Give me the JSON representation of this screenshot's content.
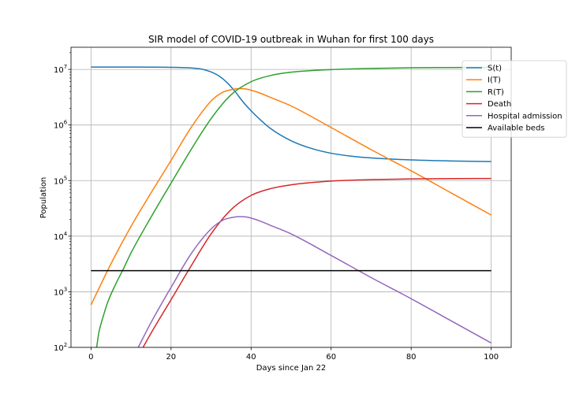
{
  "chart_data": {
    "type": "line",
    "title": "SIR model of COVID-19 outbreak in Wuhan for first 100 days",
    "xlabel": "Days since Jan 22",
    "ylabel": "Population",
    "yscale": "log",
    "xlim": [
      -5,
      105
    ],
    "ylim": [
      100,
      25000000
    ],
    "xticks": [
      0,
      20,
      40,
      60,
      80,
      100
    ],
    "xtick_labels": [
      "0",
      "20",
      "40",
      "60",
      "80",
      "100"
    ],
    "yticks": [
      100,
      1000,
      10000,
      100000,
      1000000,
      10000000
    ],
    "ytick_labels": [
      {
        "base": "10",
        "exp": "2"
      },
      {
        "base": "10",
        "exp": "3"
      },
      {
        "base": "10",
        "exp": "4"
      },
      {
        "base": "10",
        "exp": "5"
      },
      {
        "base": "10",
        "exp": "6"
      },
      {
        "base": "10",
        "exp": "7"
      }
    ],
    "grid": true,
    "legend_position": "upper right",
    "series": [
      {
        "name": "S(t)",
        "color": "#1f77b4",
        "x": [
          0,
          10,
          20,
          25,
          28,
          30,
          32,
          34,
          36,
          38,
          40,
          42,
          45,
          50,
          55,
          60,
          65,
          70,
          80,
          90,
          100
        ],
        "y": [
          11000000,
          11000000,
          10900000,
          10600000,
          10000000,
          9000000,
          7600000,
          5800000,
          4000000,
          2600000,
          1800000,
          1300000,
          850000,
          520000,
          380000,
          310000,
          275000,
          255000,
          235000,
          225000,
          220000
        ]
      },
      {
        "name": "I(T)",
        "color": "#ff7f0e",
        "x": [
          0,
          5,
          10,
          15,
          20,
          25,
          30,
          33,
          35,
          37,
          39,
          42,
          45,
          50,
          60,
          70,
          80,
          90,
          100
        ],
        "y": [
          580,
          3200,
          15000,
          60000,
          230000,
          900000,
          2700000,
          3900000,
          4300000,
          4500000,
          4400000,
          3800000,
          3100000,
          2200000,
          900000,
          360000,
          150000,
          60000,
          24000
        ]
      },
      {
        "name": "R(T)",
        "color": "#2ca02c",
        "x": [
          1.4,
          2,
          3,
          4,
          6,
          8,
          10,
          15,
          20,
          25,
          30,
          35,
          40,
          45,
          50,
          55,
          60,
          70,
          80,
          90,
          100
        ],
        "y": [
          100,
          190,
          350,
          600,
          1300,
          2500,
          5000,
          22000,
          90000,
          360000,
          1300000,
          3500000,
          6000000,
          7800000,
          8900000,
          9500000,
          9900000,
          10400000,
          10700000,
          10800000,
          10900000
        ]
      },
      {
        "name": "Death",
        "color": "#d62728",
        "x": [
          13,
          15,
          20,
          25,
          30,
          35,
          40,
          45,
          50,
          55,
          60,
          70,
          80,
          90,
          100
        ],
        "y": [
          100,
          180,
          720,
          2900,
          11000,
          30000,
          54000,
          72000,
          84000,
          92000,
          98000,
          104000,
          107000,
          108500,
          109000
        ]
      },
      {
        "name": "Hospital admission",
        "color": "#9467bd",
        "x": [
          11.8,
          15,
          20,
          25,
          30,
          33,
          35,
          37,
          39,
          42,
          45,
          50,
          60,
          70,
          80,
          90,
          100
        ],
        "y": [
          100,
          280,
          1200,
          4800,
          13500,
          19500,
          21500,
          22500,
          22000,
          19000,
          15500,
          11000,
          4500,
          1800,
          750,
          300,
          120
        ]
      },
      {
        "name": "Available beds",
        "color": "#000000",
        "x": [
          0,
          100
        ],
        "y": [
          2400,
          2400
        ]
      }
    ]
  }
}
